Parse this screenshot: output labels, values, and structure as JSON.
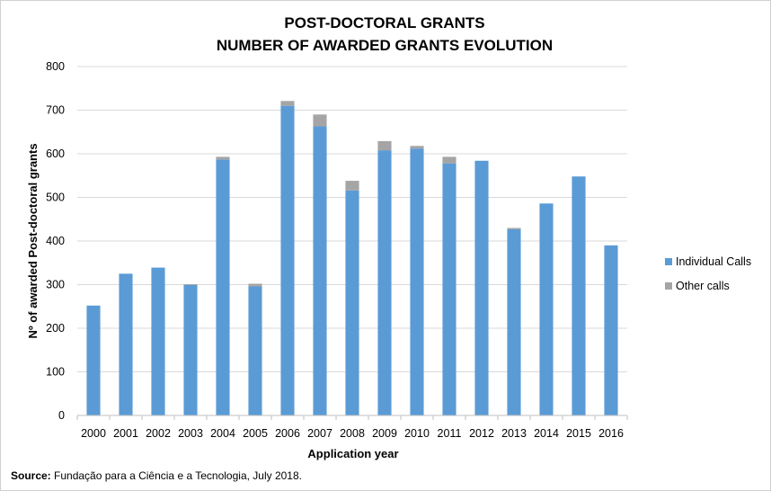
{
  "chart_data": {
    "type": "bar",
    "stacked": true,
    "title": [
      "POST-DOCTORAL GRANTS",
      "NUMBER OF AWARDED GRANTS EVOLUTION"
    ],
    "xlabel": "Application year",
    "ylabel": "Nº of awarded Post-doctoral grants",
    "ylim": [
      0,
      800
    ],
    "yticks": [
      "0",
      "100",
      "200",
      "300",
      "400",
      "500",
      "600",
      "700",
      "800"
    ],
    "grid": true,
    "legend_position": "right",
    "categories": [
      "2000",
      "2001",
      "2002",
      "2003",
      "2004",
      "2005",
      "2006",
      "2007",
      "2008",
      "2009",
      "2010",
      "2011",
      "2012",
      "2013",
      "2014",
      "2015",
      "2016"
    ],
    "series": [
      {
        "name": "Individual Calls",
        "color": "#5b9bd5",
        "values": [
          252,
          325,
          339,
          299,
          587,
          296,
          710,
          663,
          516,
          608,
          612,
          578,
          584,
          427,
          486,
          548,
          390
        ]
      },
      {
        "name": "Other calls",
        "color": "#a5a5a5",
        "values": [
          0,
          0,
          0,
          2,
          6,
          6,
          11,
          27,
          22,
          21,
          6,
          15,
          0,
          3,
          0,
          0,
          0
        ]
      }
    ]
  },
  "source": {
    "label": "Source:",
    "text": " Fundação para a Ciência e a Tecnologia, July 2018."
  }
}
